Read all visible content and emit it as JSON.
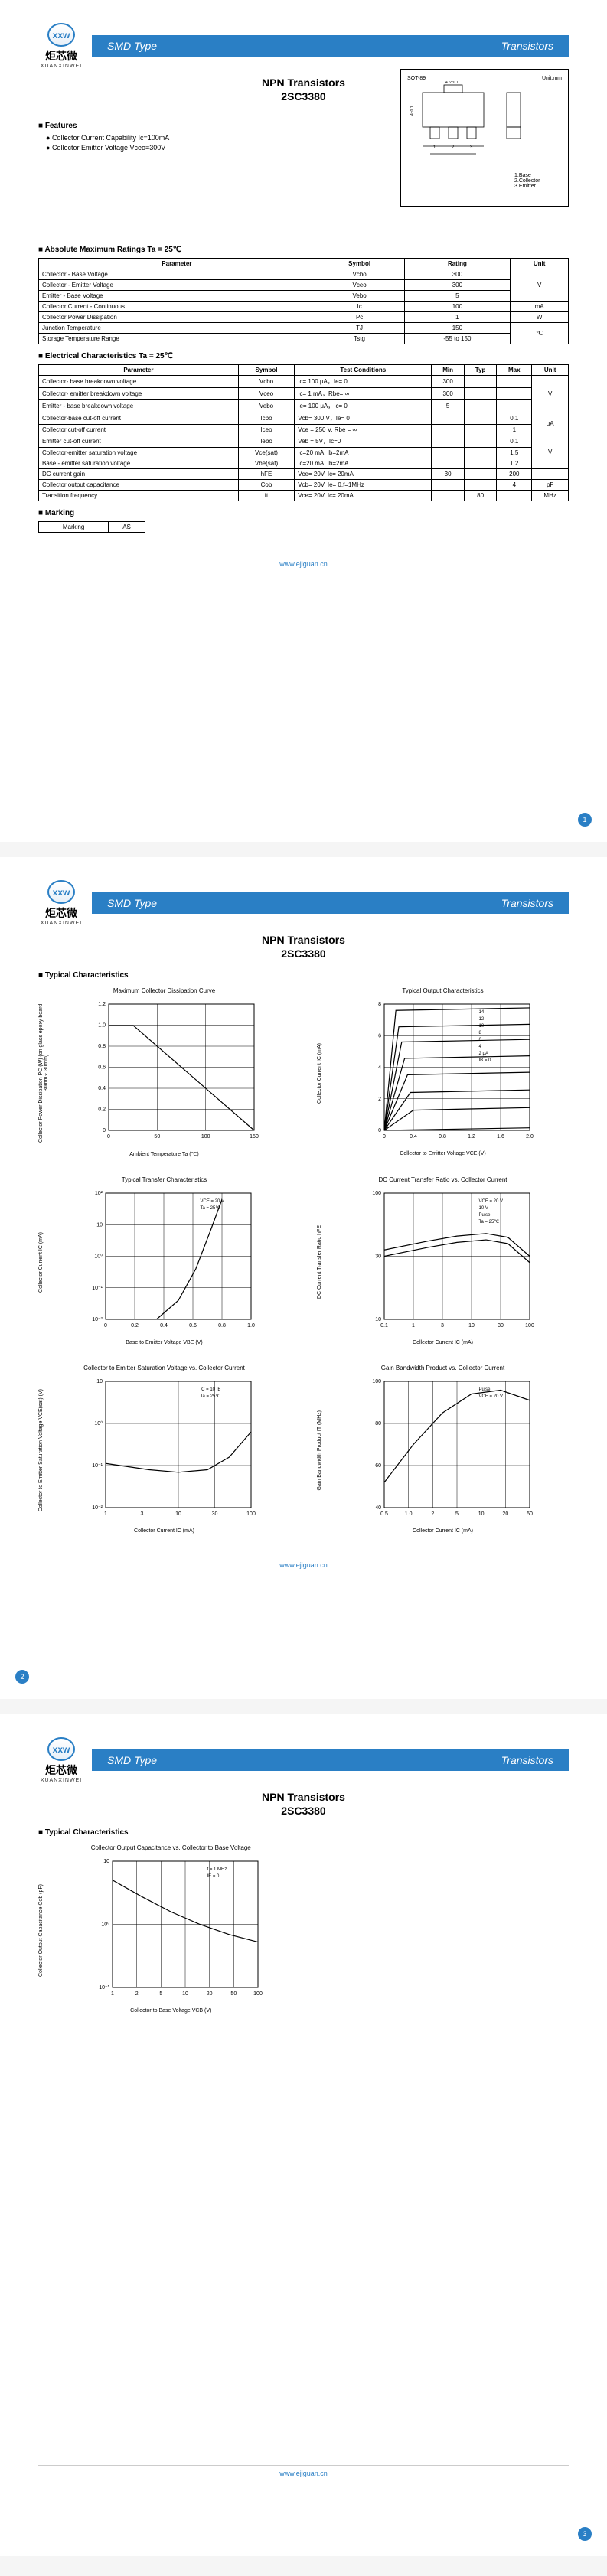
{
  "banner": {
    "left": "SMD Type",
    "right": "Transistors"
  },
  "logo": {
    "brand": "炬芯微",
    "sub": "XUANXINWEI",
    "mark": "xxw"
  },
  "title": "NPN  Transistors",
  "partno": "2SC3380",
  "footer_url": "www.ejiguan.cn",
  "page_numbers": [
    "1",
    "2",
    "3"
  ],
  "package": {
    "name": "SOT-89",
    "unit": "Unit:mm",
    "pins": [
      "1.Base",
      "2.Collector",
      "3.Emitter"
    ]
  },
  "sections": {
    "features": "Features",
    "abs_max": "Absolute Maximum Ratings Ta = 25℃",
    "elec": "Electrical Characteristics Ta = 25℃",
    "marking": "Marking",
    "typical": "Typical  Characteristics"
  },
  "features_list": [
    "Collector Current Capability Ic=100mA",
    "Collector Emitter Voltage Vceo=300V"
  ],
  "abs_max_headers": [
    "Parameter",
    "Symbol",
    "Rating",
    "Unit"
  ],
  "abs_max_rows": [
    {
      "p": "Collector - Base Voltage",
      "s": "Vcbo",
      "r": "300",
      "u": "V",
      "rowspan": 3
    },
    {
      "p": "Collector - Emitter Voltage",
      "s": "Vceo",
      "r": "300",
      "u": ""
    },
    {
      "p": "Emitter - Base Voltage",
      "s": "Vebo",
      "r": "5",
      "u": ""
    },
    {
      "p": "Collector Current - Continuous",
      "s": "Ic",
      "r": "100",
      "u": "mA",
      "rowspan": 1
    },
    {
      "p": "Collector Power Dissipation",
      "s": "Pc",
      "r": "1",
      "u": "W",
      "rowspan": 1
    },
    {
      "p": "Junction Temperature",
      "s": "TJ",
      "r": "150",
      "u": "℃",
      "rowspan": 2
    },
    {
      "p": "Storage Temperature Range",
      "s": "Tstg",
      "r": "-55 to 150",
      "u": ""
    }
  ],
  "elec_headers": [
    "Parameter",
    "Symbol",
    "Test Conditions",
    "Min",
    "Typ",
    "Max",
    "Unit"
  ],
  "elec_rows": [
    {
      "p": "Collector- base breakdown voltage",
      "s": "Vcbo",
      "tc": "Ic= 100 μA，Ie= 0",
      "min": "300",
      "typ": "",
      "max": "",
      "u": "V",
      "rowspan": 3
    },
    {
      "p": "Collector- emitter breakdown voltage",
      "s": "Vceo",
      "tc": "Ic= 1 mA，Rbe= ∞",
      "min": "300",
      "typ": "",
      "max": "",
      "u": ""
    },
    {
      "p": "Emitter - base breakdown voltage",
      "s": "Vebo",
      "tc": "Ie= 100 μA，Ic= 0",
      "min": "5",
      "typ": "",
      "max": "",
      "u": ""
    },
    {
      "p": "Collector-base cut-off current",
      "s": "Icbo",
      "tc": "Vcb= 300 V，Ie= 0",
      "min": "",
      "typ": "",
      "max": "0.1",
      "u": "uA",
      "rowspan": 2
    },
    {
      "p": "Collector cut-off current",
      "s": "Iceo",
      "tc": "Vce = 250 V, Rbe = ∞",
      "min": "",
      "typ": "",
      "max": "1",
      "u": ""
    },
    {
      "p": "Emitter cut-off current",
      "s": "Iebo",
      "tc": "Veb = 5V，Ic=0",
      "min": "",
      "typ": "",
      "max": "0.1",
      "u": "V",
      "rowspan": 3
    },
    {
      "p": "Collector-emitter saturation voltage",
      "s": "Vce(sat)",
      "tc": "Ic=20 mA, Ib=2mA",
      "min": "",
      "typ": "",
      "max": "1.5",
      "u": ""
    },
    {
      "p": "Base - emitter saturation voltage",
      "s": "Vbe(sat)",
      "tc": "Ic=20 mA, Ib=2mA",
      "min": "",
      "typ": "",
      "max": "1.2",
      "u": ""
    },
    {
      "p": "DC current gain",
      "s": "hFE",
      "tc": "Vce= 20V, Ic= 20mA",
      "min": "30",
      "typ": "",
      "max": "200",
      "u": "",
      "rowspan": 1
    },
    {
      "p": "Collector output  capacitance",
      "s": "Cob",
      "tc": "Vcb= 20V, Ie= 0,f=1MHz",
      "min": "",
      "typ": "",
      "max": "4",
      "u": "pF",
      "rowspan": 1
    },
    {
      "p": "Transition frequency",
      "s": "ft",
      "tc": "Vce= 20V, Ic= 20mA",
      "min": "",
      "typ": "80",
      "max": "",
      "u": "MHz",
      "rowspan": 1
    }
  ],
  "marking": {
    "label": "Marking",
    "value": "AS"
  },
  "charts": {
    "c1": {
      "title": "Maximum Collector Dissipation Curve",
      "xlabel": "Ambient Temperature  Ta  (℃)",
      "ylabel": "Collector Power Dissipation  PC (W) (on glass epoxy board 30mm×30mm)",
      "xticks": [
        "0",
        "50",
        "100",
        "150"
      ],
      "yticks": [
        "0",
        "0.2",
        "0.4",
        "0.6",
        "0.8",
        "1.0",
        "1.2"
      ]
    },
    "c2": {
      "title": "Typical Output Characteristics",
      "xlabel": "Collector to Emitter Voltage VCE (V)",
      "ylabel": "Collector Current  IC (mA)",
      "xticks": [
        "0",
        "0.4",
        "0.8",
        "1.2",
        "1.6",
        "2.0"
      ],
      "yticks": [
        "0",
        "2",
        "4",
        "6",
        "8"
      ],
      "annotations": [
        "14",
        "12",
        "10",
        "8",
        "6",
        "4",
        "2 μA",
        "IB = 0"
      ]
    },
    "c3": {
      "title": "Typical Transfer Characteristics",
      "xlabel": "Base to Emitter Voltage  VBE  (V)",
      "ylabel": "Collector Current  IC (mA)",
      "xticks": [
        "0",
        "0.2",
        "0.4",
        "0.6",
        "0.8",
        "1.0"
      ],
      "yticks": [
        "10⁻²",
        "10⁻¹",
        "10⁰",
        "10",
        "10²"
      ],
      "annotations": [
        "VCE = 20 V",
        "Ta = 25℃"
      ]
    },
    "c4": {
      "title": "DC Current Transfer Ratio vs. Collector Current",
      "xlabel": "Collector Current  IC (mA)",
      "ylabel": "DC Current Transfer Ratio  hFE",
      "xticks": [
        "0.1",
        "1",
        "3",
        "10",
        "30",
        "100"
      ],
      "yticks": [
        "10",
        "30",
        "100"
      ],
      "annotations": [
        "VCE = 20 V",
        "10 V",
        "Pulse",
        "Ta = 25℃"
      ]
    },
    "c5": {
      "title": "Collector to Emitter Saturation Voltage vs. Collector Current",
      "xlabel": "Collector Current  IC (mA)",
      "ylabel": "Collector to Emitter Saturation Voltage VCE(sat) (V)",
      "xticks": [
        "1",
        "3",
        "10",
        "30",
        "100"
      ],
      "yticks": [
        "10⁻²",
        "10⁻¹",
        "10⁰",
        "10"
      ],
      "annotations": [
        "IC = 10 IB",
        "Ta = 25℃"
      ]
    },
    "c6": {
      "title": "Gain Bandwidth Product vs. Collector Current",
      "xlabel": "Collector Current  IC (mA)",
      "ylabel": "Gain Bandwidth Product fT (MHz)",
      "xticks": [
        "0.5",
        "1.0",
        "2",
        "5",
        "10",
        "20",
        "50"
      ],
      "yticks": [
        "40",
        "60",
        "80",
        "100"
      ],
      "annotations": [
        "Pulse",
        "VCE = 20 V"
      ]
    },
    "c7": {
      "title": "Collector Output Capacitance vs. Collector to Base Voltage",
      "xlabel": "Collector to Base Voltage  VCB (V)",
      "ylabel": "Collector Output Capacitance  Cob (pF)",
      "xticks": [
        "1",
        "2",
        "5",
        "10",
        "20",
        "50",
        "100"
      ],
      "yticks": [
        "10⁻¹",
        "10⁰",
        "10"
      ],
      "annotations": [
        "f = 1 MHz",
        "IE = 0"
      ]
    }
  },
  "colors": {
    "brand": "#2a7fc5",
    "grid": "#000000"
  }
}
